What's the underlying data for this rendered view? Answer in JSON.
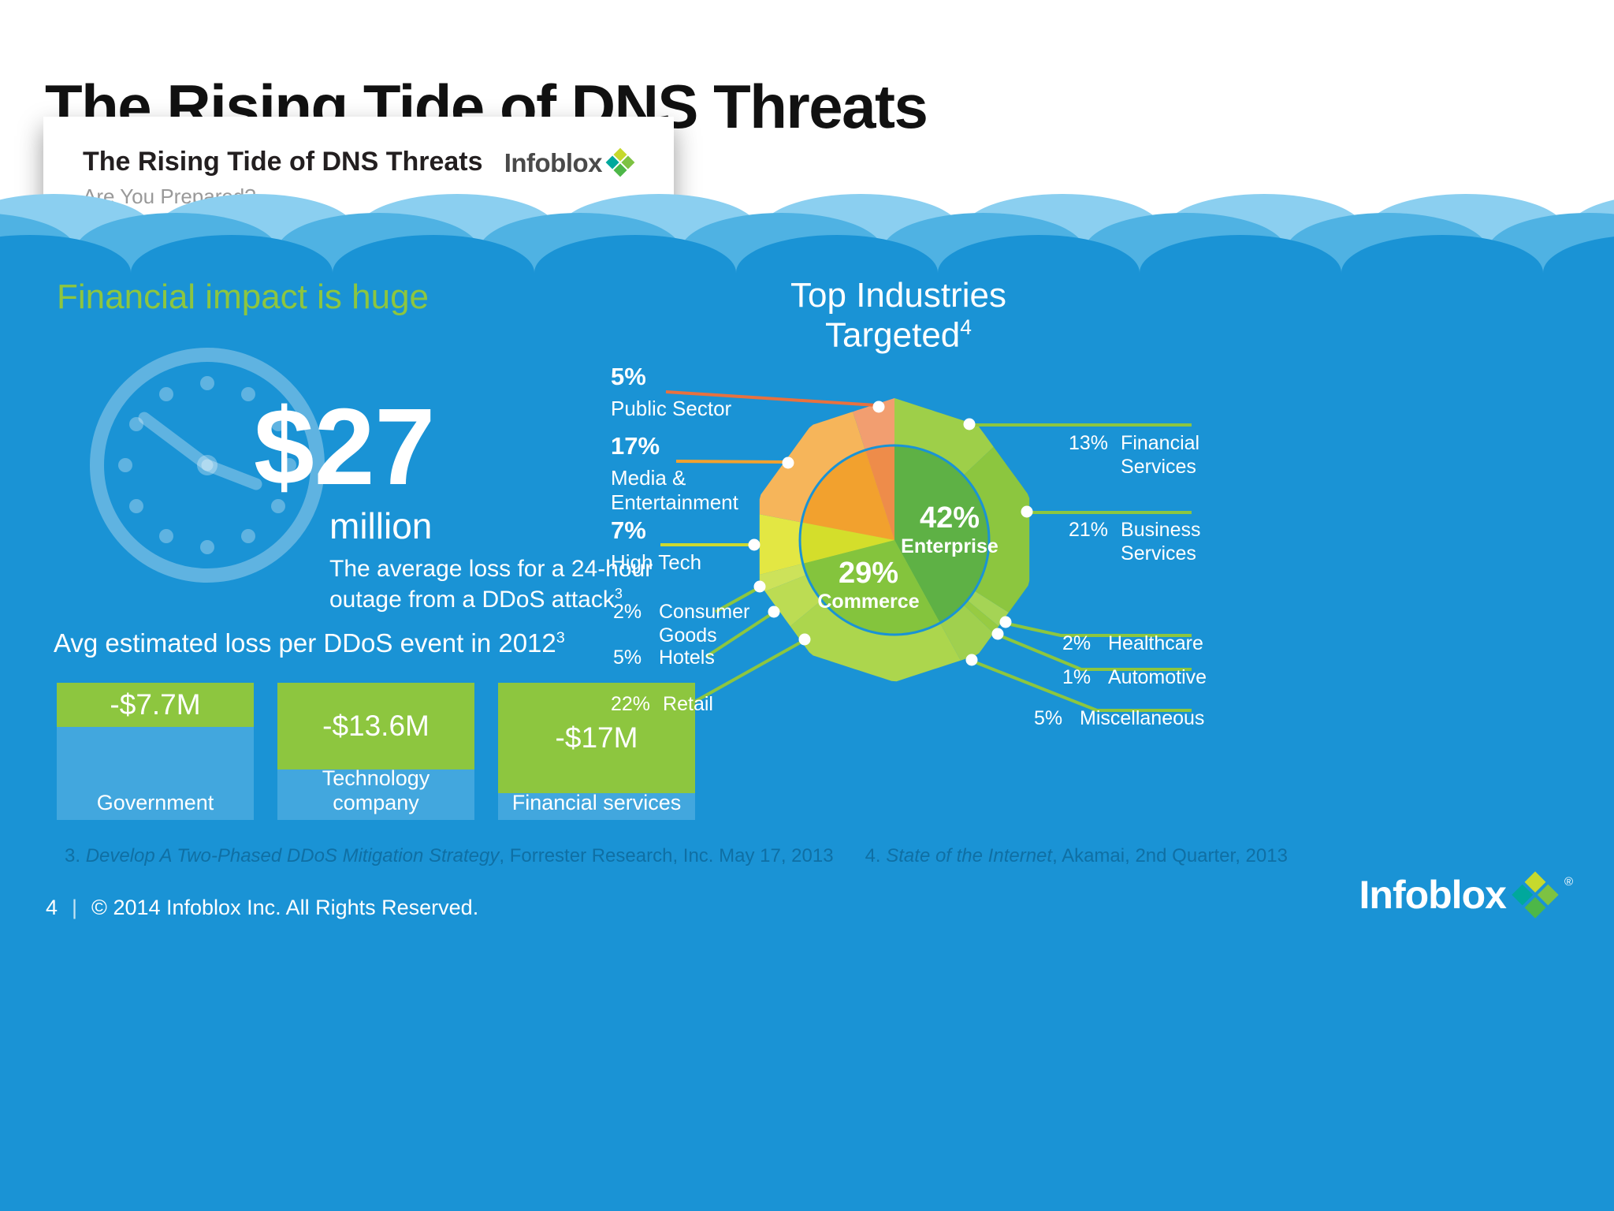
{
  "slide": {
    "title": "The Rising Tide of DNS Threats",
    "footer": {
      "page": "4",
      "divider": "|",
      "copyright": "© 2014 Infoblox Inc. All Rights Reserved."
    },
    "brand": {
      "name": "Infoblox",
      "registered": "®"
    }
  },
  "thumbnail": {
    "title": "The Rising Tide of DNS Threats",
    "subtitle": "Are You Prepared?",
    "brand": "Infoblox"
  },
  "left_panel": {
    "heading": "Financial impact is huge",
    "stat_value": "$27",
    "stat_unit": "million",
    "stat_desc": "The average loss for a 24-hour outage from a DDoS attack",
    "stat_ref": "3",
    "bars_heading": "Avg estimated loss per DDoS event in 2012",
    "bars_ref": "3"
  },
  "right_panel": {
    "heading": "Top Industries Targeted",
    "heading_ref": "4"
  },
  "footnote": {
    "ref3_label": "3. ",
    "ref3_title": "Develop A Two-Phased DDoS Mitigation Strategy",
    "ref3_rest": ", Forrester Research, Inc. May 17, 2013",
    "ref4_label": "4. ",
    "ref4_title": "State of the Internet",
    "ref4_rest": ", Akamai, 2nd Quarter, 2013"
  },
  "colors": {
    "sea": "#1a93d5",
    "wave_light": "#8bcff0",
    "wave_mid": "#4fb2e3",
    "accent_green": "#8dc63f",
    "bar_blue": "#42a7de",
    "line_green": "#8dc63f",
    "line_orange": "#e8713f",
    "line_amber": "#f2a12e",
    "line_yellow": "#cdd92f",
    "footnote_blue": "#0f6fa4",
    "logo_0": "#c6d92d",
    "logo_1": "#7dc242",
    "logo_2": "#4db748",
    "logo_3": "#00a89c"
  },
  "chart_data": [
    {
      "type": "bar",
      "title": "Avg estimated loss per DDoS event in 2012",
      "categories": [
        "Government",
        "Technology company",
        "Financial services"
      ],
      "values": [
        -7.7,
        -13.6,
        -17
      ],
      "value_labels": [
        "-$7.7M",
        "-$13.6M",
        "-$17M"
      ]
    },
    {
      "type": "pie",
      "title": "Top Industries Targeted",
      "start_angle_deg": -18,
      "direction": "clockwise",
      "segments": [
        {
          "label": "Public Sector",
          "pct_label": "5%",
          "value": 5,
          "color": "#ee8c4a",
          "outer_color": "#f29e70"
        },
        {
          "label": "Enterprise",
          "pct_label": "42%",
          "value": 42,
          "color": "#5eb145",
          "children": [
            {
              "label": "Financial Services",
              "pct_label": "13%",
              "value": 13,
              "outer_color": "#9ecf49"
            },
            {
              "label": "Business Services",
              "pct_label": "21%",
              "value": 21,
              "outer_color": "#8cc63f"
            },
            {
              "label": "Healthcare",
              "pct_label": "2%",
              "value": 2,
              "outer_color": "#a5d455"
            },
            {
              "label": "Automotive",
              "pct_label": "1%",
              "value": 1,
              "outer_color": "#97cb42"
            },
            {
              "label": "Miscellaneous",
              "pct_label": "5%",
              "value": 5,
              "outer_color": "#a0d04e"
            }
          ]
        },
        {
          "label": "Commerce",
          "pct_label": "29%",
          "value": 29,
          "color": "#84c43d",
          "children": [
            {
              "label": "Retail",
              "pct_label": "22%",
              "value": 22,
              "outer_color": "#acd64d"
            },
            {
              "label": "Hotels",
              "pct_label": "5%",
              "value": 5,
              "outer_color": "#bcdc53"
            },
            {
              "label": "Consumer Goods",
              "pct_label": "2%",
              "value": 2,
              "outer_color": "#cde25a"
            }
          ]
        },
        {
          "label": "High Tech",
          "pct_label": "7%",
          "value": 7,
          "color": "#d4de2b",
          "outer_color": "#e3e743"
        },
        {
          "label": "Media & Entertainment",
          "pct_label": "17%",
          "value": 17,
          "color": "#f2a12e",
          "outer_color": "#f6b55a"
        }
      ]
    }
  ]
}
